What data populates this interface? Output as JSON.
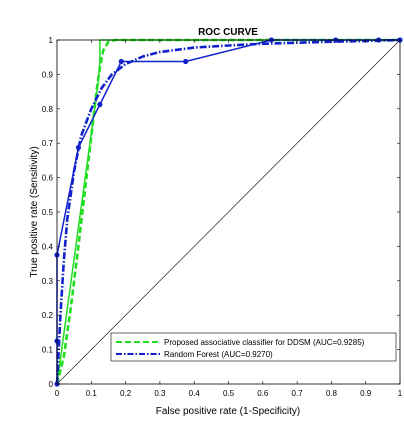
{
  "chart_data": {
    "type": "line",
    "title": "ROC CURVE",
    "xlabel": "False positive rate (1-Specificity)",
    "ylabel": "True positive rate (Sensitivity)",
    "xlim": [
      0,
      1
    ],
    "ylim": [
      0,
      1
    ],
    "x_ticks": [
      "0",
      "0.1",
      "0.2",
      "0.3",
      "0.4",
      "0.5",
      "0.6",
      "0.7",
      "0.8",
      "0.9",
      "1"
    ],
    "y_ticks": [
      "0",
      "0.1",
      "0.2",
      "0.3",
      "0.4",
      "0.5",
      "0.6",
      "0.7",
      "0.8",
      "0.9",
      "1"
    ],
    "grid": false,
    "legend_position": "bottom-right",
    "series": [
      {
        "name": "Proposed associative classifier for DDSM (AUC=0.9285)",
        "color": "#22dd22",
        "style": "dashed-solid",
        "markers": "none",
        "points": [
          [
            0.0,
            0.0
          ],
          [
            0.02,
            0.08
          ],
          [
            0.04,
            0.22
          ],
          [
            0.06,
            0.38
          ],
          [
            0.08,
            0.55
          ],
          [
            0.1,
            0.72
          ],
          [
            0.115,
            0.85
          ],
          [
            0.125,
            0.92
          ],
          [
            0.135,
            0.97
          ],
          [
            0.15,
            0.995
          ],
          [
            0.17,
            1.0
          ],
          [
            0.2,
            1.0
          ],
          [
            0.3,
            1.0
          ],
          [
            0.5,
            1.0
          ],
          [
            0.7,
            1.0
          ],
          [
            0.9,
            1.0
          ],
          [
            1.0,
            1.0
          ]
        ],
        "observed": [
          [
            0.0,
            0.0
          ],
          [
            0.12,
            0.875
          ],
          [
            0.125,
            0.94
          ],
          [
            0.125,
            1.0
          ],
          [
            0.19,
            1.0
          ],
          [
            1.0,
            1.0
          ]
        ]
      },
      {
        "name": "Random Forest (AUC=0.9270)",
        "color": "#1122cc",
        "style": "dash-dot-solid",
        "markers": "dot",
        "points": [
          [
            0.0,
            0.0
          ],
          [
            0.01,
            0.2
          ],
          [
            0.02,
            0.36
          ],
          [
            0.03,
            0.48
          ],
          [
            0.05,
            0.62
          ],
          [
            0.07,
            0.72
          ],
          [
            0.1,
            0.8
          ],
          [
            0.13,
            0.86
          ],
          [
            0.16,
            0.9
          ],
          [
            0.2,
            0.93
          ],
          [
            0.25,
            0.952
          ],
          [
            0.3,
            0.965
          ],
          [
            0.4,
            0.978
          ],
          [
            0.5,
            0.984
          ],
          [
            0.6,
            0.989
          ],
          [
            0.7,
            0.992
          ],
          [
            0.8,
            0.995
          ],
          [
            0.9,
            0.997
          ],
          [
            1.0,
            1.0
          ]
        ],
        "observed": [
          [
            0.0,
            0.0
          ],
          [
            0.0,
            0.125
          ],
          [
            0.0,
            0.375
          ],
          [
            0.0625,
            0.6875
          ],
          [
            0.125,
            0.8125
          ],
          [
            0.1875,
            0.9375
          ],
          [
            0.375,
            0.9375
          ],
          [
            0.625,
            1.0
          ],
          [
            0.8125,
            1.0
          ],
          [
            0.9375,
            1.0
          ],
          [
            1.0,
            1.0
          ]
        ]
      }
    ],
    "reference_line": [
      [
        0,
        0
      ],
      [
        1,
        1
      ]
    ]
  }
}
